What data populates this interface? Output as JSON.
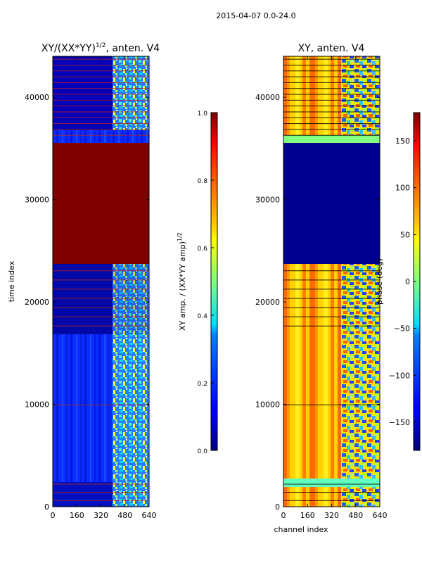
{
  "suptitle": "2015-04-07 0.0-24.0",
  "chart_data": [
    {
      "type": "heatmap",
      "title_prefix": "XY/(XX*YY)",
      "title_exponent": "1/2",
      "title_suffix": ", anten. V4",
      "xlabel": "",
      "ylabel": "time index",
      "xlim": [
        0,
        640
      ],
      "ylim": [
        0,
        44000
      ],
      "xticks": [
        0,
        160,
        320,
        480,
        640
      ],
      "yticks": [
        0,
        10000,
        20000,
        30000,
        40000
      ],
      "colorbar": {
        "label_prefix": "XY amp. / (XX*YY amp)",
        "label_exponent": "1/2",
        "range": [
          0.0,
          1.0
        ],
        "ticks": [
          "0.0",
          "0.2",
          "0.4",
          "0.6",
          "0.8",
          "1.0"
        ],
        "tick_values": [
          0.0,
          0.2,
          0.4,
          0.6,
          0.8,
          1.0
        ]
      },
      "regions": [
        {
          "t0": 0,
          "t1": 2400,
          "value": 0.18,
          "note": "low amplitude, bright patches 430-600"
        },
        {
          "t0": 2400,
          "t1": 17000,
          "value": 0.2,
          "note": "low amplitude with bright channels 380-600"
        },
        {
          "t0": 17000,
          "t1": 23800,
          "value": 0.08,
          "note": "very low amplitude, horizontal flag lines"
        },
        {
          "t0": 23800,
          "t1": 35600,
          "value": 1.0,
          "note": "saturated"
        },
        {
          "t0": 35600,
          "t1": 44000,
          "value": 0.1,
          "note": "low amplitude, many horizontal flag lines"
        }
      ]
    },
    {
      "type": "heatmap",
      "title": "XY, anten. V4",
      "xlabel": "channel index",
      "ylabel": "",
      "xlim": [
        0,
        640
      ],
      "ylim": [
        0,
        44000
      ],
      "xticks": [
        0,
        160,
        320,
        480,
        640
      ],
      "yticks": [
        0,
        10000,
        20000,
        30000,
        40000
      ],
      "colorbar": {
        "label": "phase (deg)",
        "range": [
          -180,
          180
        ],
        "ticks": [
          "−150",
          "−100",
          "−50",
          "0",
          "50",
          "100",
          "150"
        ],
        "tick_values": [
          -150,
          -100,
          -50,
          0,
          50,
          100,
          150
        ]
      },
      "regions": [
        {
          "t0": 0,
          "t1": 17000,
          "value": 45,
          "note": "vertical stripes, noisy phase 400-640"
        },
        {
          "t0": 17000,
          "t1": 23800,
          "value": 40,
          "note": "phase with flag lines"
        },
        {
          "t0": 23800,
          "t1": 35600,
          "value": -180,
          "note": "constant minimum phase"
        },
        {
          "t0": 35600,
          "t1": 37000,
          "value": 0,
          "note": "constant zero phase band"
        },
        {
          "t0": 37000,
          "t1": 44000,
          "value": 60,
          "note": "striped phase with many flag lines"
        }
      ]
    }
  ],
  "colors": {
    "background": "#ffffff",
    "axis": "#000000",
    "flag_line": "#b22222"
  }
}
